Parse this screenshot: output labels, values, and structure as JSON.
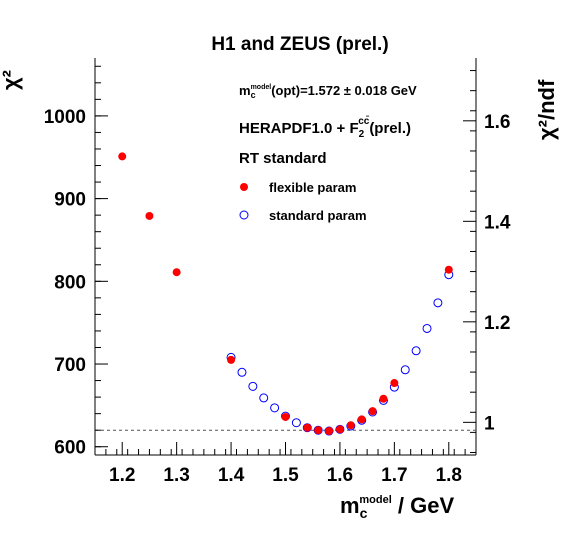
{
  "colors": {
    "flexible": "#ff0000",
    "standard": "#0000ff",
    "axis": "#000000",
    "reference": "#555555"
  },
  "chart_data": {
    "type": "scatter",
    "title": "H1 and ZEUS (prel.)",
    "ylabel": "χ²",
    "ylabel_right": "χ²/ndf",
    "xlabel": "m_c^model / GeV",
    "xlim": [
      1.15,
      1.85
    ],
    "ylim": [
      590,
      1070
    ],
    "ylim_right": [
      0.935,
      1.725
    ],
    "x_ticks": [
      "1.2",
      "1.3",
      "1.4",
      "1.5",
      "1.6",
      "1.7",
      "1.8"
    ],
    "y_ticks": [
      "600",
      "700",
      "800",
      "900",
      "1000"
    ],
    "y_ticks_right": [
      "1",
      "1.2",
      "1.4",
      "1.6"
    ],
    "reference_line_y": 620,
    "annotations": {
      "mc_opt": "m_c^model(opt)=1.572 ± 0.018 GeV",
      "pdf": "HERAPDF1.0 + F_2^cc̄(prel.)",
      "scheme": "RT standard"
    },
    "legend_position": "top-right",
    "series": [
      {
        "name": "flexible param",
        "marker": "filled-circle",
        "x": [
          1.2,
          1.25,
          1.3,
          1.4,
          1.5,
          1.54,
          1.56,
          1.58,
          1.6,
          1.62,
          1.64,
          1.66,
          1.68,
          1.7,
          1.8
        ],
        "y": [
          951,
          879,
          811,
          705,
          636,
          623,
          620,
          619,
          621,
          626,
          633,
          643,
          658,
          677,
          814
        ]
      },
      {
        "name": "standard param",
        "marker": "open-circle",
        "x": [
          1.4,
          1.42,
          1.44,
          1.46,
          1.48,
          1.5,
          1.52,
          1.54,
          1.56,
          1.58,
          1.6,
          1.62,
          1.64,
          1.66,
          1.68,
          1.7,
          1.72,
          1.74,
          1.76,
          1.78,
          1.8
        ],
        "y": [
          708,
          690,
          673,
          659,
          647,
          637,
          629,
          623,
          620,
          619,
          621,
          625,
          632,
          642,
          656,
          672,
          693,
          716,
          743,
          774,
          808
        ]
      }
    ]
  }
}
